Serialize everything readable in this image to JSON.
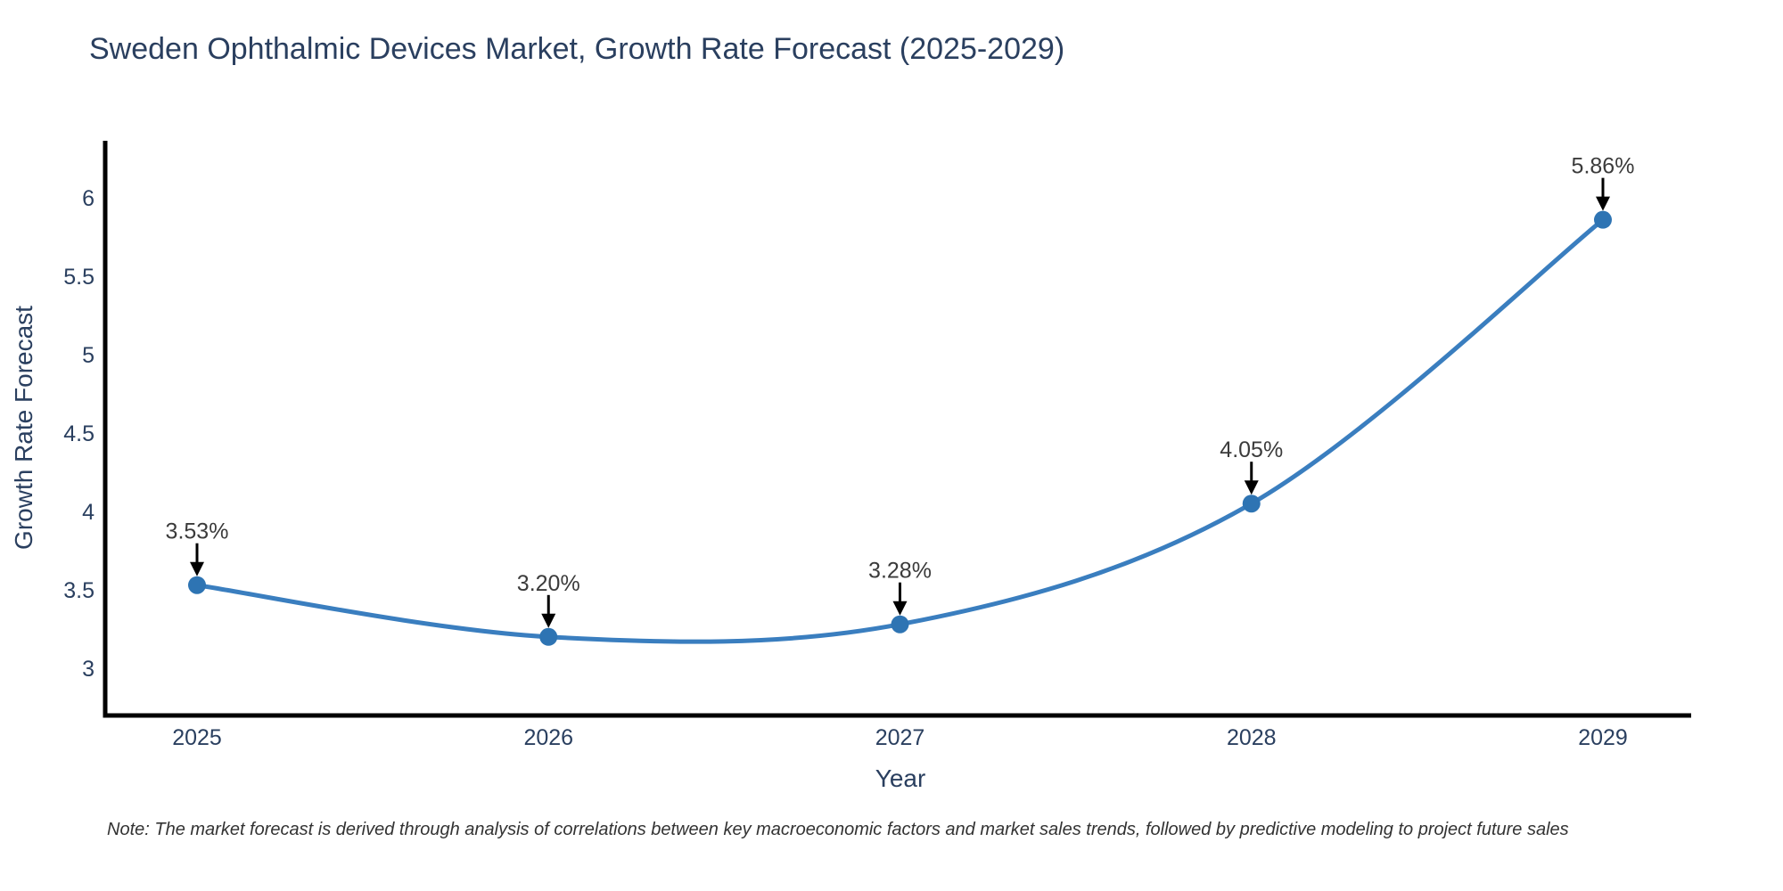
{
  "title": "Sweden Ophthalmic Devices Market, Growth Rate Forecast (2025-2029)",
  "note": "Note: The market forecast is derived through analysis of correlations between key macroeconomic factors and market sales trends, followed by predictive modeling to project future sales",
  "chart_data": {
    "type": "line",
    "categories": [
      "2025",
      "2026",
      "2027",
      "2028",
      "2029"
    ],
    "series": [
      {
        "name": "Growth Rate Forecast",
        "values": [
          3.53,
          3.2,
          3.28,
          4.05,
          5.86
        ],
        "point_labels": [
          "3.53%",
          "3.20%",
          "3.28%",
          "4.05%",
          "5.86%"
        ]
      }
    ],
    "xlabel": "Year",
    "ylabel": "Growth Rate Forecast",
    "yticks": [
      3,
      3.5,
      4,
      4.5,
      5,
      5.5,
      6
    ],
    "ylim": [
      2.7,
      6.35
    ],
    "grid": "off",
    "legend": "none",
    "line_shape": "spline",
    "colors": {
      "line": "#3a7ebf",
      "marker": "#2e74b3",
      "axis_line": "#000000",
      "axis_text": "#2a3f5f",
      "annotation_text": "#3b3b3b",
      "annotation_arrow": "#000000"
    }
  }
}
